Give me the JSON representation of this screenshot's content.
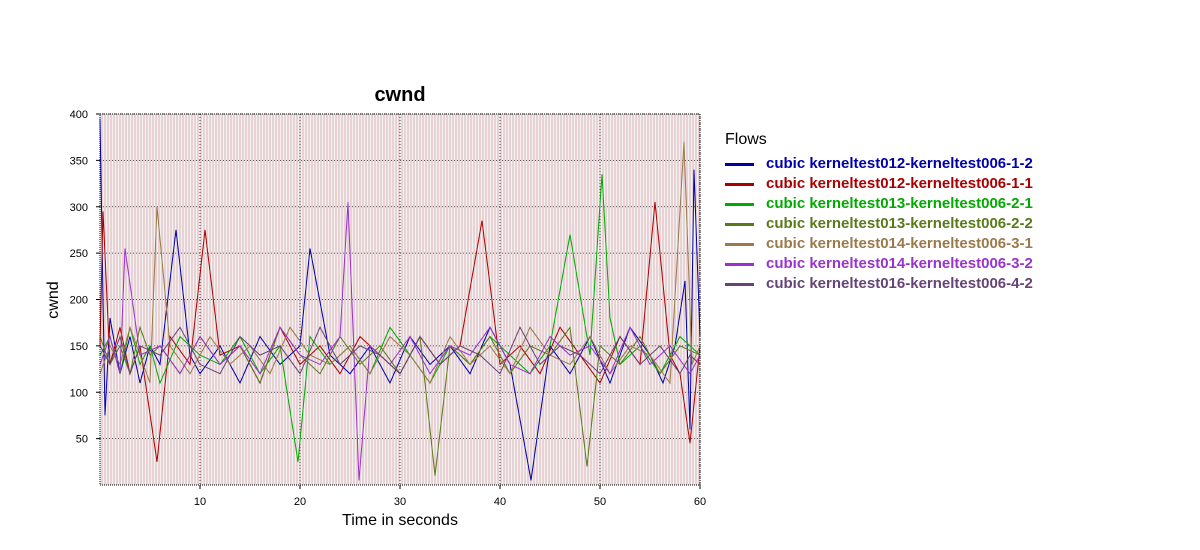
{
  "chart_data": {
    "type": "line",
    "title": "cwnd",
    "xlabel": "Time in seconds",
    "ylabel": "cwnd",
    "xlim": [
      0,
      60
    ],
    "ylim": [
      0,
      400
    ],
    "xticks": [
      10,
      20,
      30,
      40,
      50,
      60
    ],
    "yticks": [
      50,
      100,
      150,
      200,
      250,
      300,
      350,
      400
    ],
    "grid": true,
    "legend_title": "Flows",
    "legend_position": "right",
    "series": [
      {
        "name": "cubic kerneltest012-kerneltest006-1-2",
        "color": "#0000aa",
        "x": [
          0,
          0.5,
          1,
          2,
          3,
          4,
          5,
          6,
          7.6,
          9,
          10,
          12,
          14,
          16,
          18,
          20,
          21,
          23,
          25,
          27,
          29,
          31,
          33,
          35,
          37,
          39,
          41,
          43.1,
          45,
          47,
          49,
          51,
          53,
          55,
          56.3,
          57.5,
          58.5,
          59,
          59.4,
          60
        ],
        "y": [
          395,
          75,
          180,
          120,
          160,
          110,
          150,
          130,
          275,
          140,
          120,
          150,
          110,
          160,
          130,
          150,
          255,
          140,
          120,
          150,
          110,
          160,
          130,
          150,
          120,
          170,
          130,
          5,
          150,
          120,
          160,
          110,
          170,
          140,
          110,
          150,
          220,
          60,
          340,
          160
        ]
      },
      {
        "name": "cubic kerneltest012-kerneltest006-1-1",
        "color": "#aa0000",
        "x": [
          0,
          0.3,
          1,
          2,
          3,
          4,
          5.7,
          7,
          9,
          10.5,
          12,
          14,
          16,
          18,
          20,
          22,
          24,
          26,
          28,
          30,
          32,
          34,
          36,
          38.2,
          40,
          42,
          44,
          46,
          48,
          50,
          52,
          54,
          55.5,
          57,
          58,
          59,
          60
        ],
        "y": [
          150,
          295,
          130,
          170,
          120,
          150,
          25,
          160,
          130,
          275,
          140,
          150,
          110,
          170,
          130,
          150,
          120,
          160,
          140,
          120,
          160,
          130,
          150,
          285,
          130,
          150,
          120,
          170,
          140,
          110,
          160,
          130,
          305,
          140,
          120,
          45,
          150
        ]
      },
      {
        "name": "cubic kerneltest013-kerneltest006-2-1",
        "color": "#00aa00",
        "x": [
          0,
          1,
          2,
          3,
          4,
          5,
          6,
          8,
          10,
          12,
          14,
          16,
          18,
          19.8,
          21,
          23,
          25,
          27,
          29,
          31,
          33,
          35,
          37,
          39,
          41,
          43,
          45,
          47,
          49,
          50.2,
          51,
          52,
          54,
          56,
          58,
          60
        ],
        "y": [
          140,
          160,
          120,
          170,
          130,
          150,
          110,
          160,
          140,
          130,
          160,
          120,
          150,
          25,
          160,
          130,
          150,
          120,
          170,
          140,
          110,
          150,
          130,
          160,
          140,
          120,
          150,
          270,
          140,
          335,
          180,
          130,
          150,
          120,
          160,
          140
        ]
      },
      {
        "name": "cubic kerneltest013-kerneltest006-2-2",
        "color": "#5a7a1a",
        "x": [
          0,
          1,
          2,
          3,
          4,
          5,
          6,
          8,
          10,
          12,
          14,
          16,
          18,
          20,
          22,
          24,
          26,
          28,
          30,
          32,
          33.5,
          35,
          37,
          39,
          41,
          43,
          45,
          47,
          48.7,
          50,
          52,
          54,
          56,
          58,
          60
        ],
        "y": [
          160,
          130,
          150,
          120,
          170,
          140,
          150,
          120,
          160,
          130,
          150,
          110,
          170,
          140,
          120,
          160,
          130,
          150,
          120,
          160,
          10,
          150,
          130,
          160,
          120,
          150,
          140,
          170,
          20,
          150,
          130,
          160,
          120,
          150,
          140
        ]
      },
      {
        "name": "cubic kerneltest014-kerneltest006-3-1",
        "color": "#9a7a4a",
        "x": [
          0,
          1,
          2,
          3,
          4,
          5,
          5.7,
          7,
          9,
          11,
          13,
          15,
          17,
          19,
          21,
          23,
          25,
          27,
          29,
          31,
          33,
          35,
          37,
          39,
          41,
          43,
          45,
          47,
          49,
          51,
          53,
          55,
          57,
          58.4,
          59.2,
          60
        ],
        "y": [
          120,
          150,
          130,
          170,
          140,
          110,
          300,
          150,
          120,
          160,
          130,
          150,
          120,
          170,
          140,
          130,
          150,
          120,
          160,
          140,
          110,
          160,
          130,
          150,
          120,
          170,
          140,
          130,
          160,
          120,
          150,
          140,
          110,
          370,
          130,
          150
        ]
      },
      {
        "name": "cubic kerneltest014-kerneltest006-3-2",
        "color": "#9933cc",
        "x": [
          0,
          1,
          2,
          2.5,
          4,
          6,
          8,
          10,
          12,
          14,
          16,
          18,
          20,
          22,
          24,
          24.8,
          25.9,
          27,
          29,
          31,
          33,
          35,
          37,
          39,
          41,
          43,
          45,
          47,
          49,
          51,
          53,
          55,
          57,
          59,
          60
        ],
        "y": [
          130,
          160,
          120,
          255,
          140,
          150,
          120,
          160,
          130,
          150,
          120,
          170,
          140,
          130,
          160,
          305,
          5,
          150,
          130,
          160,
          120,
          150,
          140,
          170,
          130,
          120,
          160,
          140,
          150,
          120,
          170,
          130,
          150,
          120,
          140
        ]
      },
      {
        "name": "cubic kerneltest016-kerneltest006-4-2",
        "color": "#664477",
        "x": [
          0,
          1,
          2,
          3,
          4,
          6,
          8,
          10,
          12,
          14,
          16,
          18,
          20,
          22,
          24,
          26,
          28,
          30,
          32,
          34,
          36,
          38,
          40,
          42,
          44,
          46,
          48,
          50,
          52,
          54,
          56,
          58,
          59,
          60
        ],
        "y": [
          150,
          130,
          160,
          120,
          150,
          140,
          170,
          130,
          120,
          160,
          140,
          150,
          120,
          170,
          130,
          150,
          140,
          120,
          160,
          130,
          150,
          140,
          120,
          170,
          130,
          150,
          140,
          120,
          160,
          130,
          150,
          120,
          140,
          130
        ]
      }
    ]
  }
}
